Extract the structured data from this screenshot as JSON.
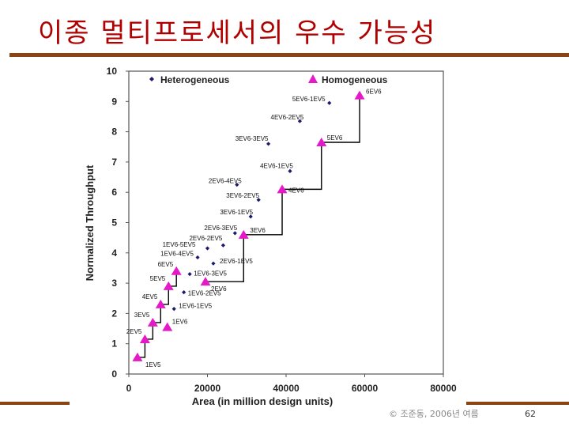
{
  "slide": {
    "title": "이종 멀티프로세서의 우수 가능성",
    "footer": "© 조준동, 2006년 여름",
    "page_number": "62"
  },
  "colors": {
    "title": "#b00000",
    "rule": "#8b4513",
    "heterogeneous": "#1a1a6e",
    "homogeneous": "#e619c8"
  },
  "chart_data": {
    "type": "scatter",
    "xlabel": "Area (in million design units)",
    "ylabel": "Normalized Throughput",
    "xlim": [
      0,
      80000
    ],
    "ylim": [
      0,
      10
    ],
    "xticks": [
      0,
      20000,
      40000,
      60000,
      80000
    ],
    "yticks": [
      0,
      1,
      2,
      3,
      4,
      5,
      6,
      7,
      8,
      9,
      10
    ],
    "grid": false,
    "legend": "top",
    "series": [
      {
        "name": "Heterogeneous",
        "marker": "diamond",
        "points": [
          {
            "label": "5EV6-1EV5",
            "x": 51000,
            "y": 8.95
          },
          {
            "label": "4EV6-2EV5",
            "x": 43500,
            "y": 8.35
          },
          {
            "label": "3EV6-3EV5",
            "x": 35500,
            "y": 7.6
          },
          {
            "label": "4EV6-1EV5",
            "x": 41000,
            "y": 6.7
          },
          {
            "label": "2EV6-4EV5",
            "x": 27500,
            "y": 6.25
          },
          {
            "label": "3EV6-2EV5",
            "x": 33000,
            "y": 5.75
          },
          {
            "label": "3EV6-1EV5",
            "x": 31000,
            "y": 5.2
          },
          {
            "label": "2EV6-3EV5",
            "x": 27000,
            "y": 4.65
          },
          {
            "label": "2EV6-2EV5",
            "x": 24000,
            "y": 4.25
          },
          {
            "label": "1EV6-5EV5",
            "x": 20000,
            "y": 4.15
          },
          {
            "label": "1EV6-4EV5",
            "x": 17500,
            "y": 3.85
          },
          {
            "label": "2EV6-1EV5",
            "x": 21500,
            "y": 3.65
          },
          {
            "label": "1EV6-3EV5",
            "x": 15500,
            "y": 3.3
          },
          {
            "label": "1EV6-2EV5",
            "x": 14000,
            "y": 2.7
          },
          {
            "label": "1EV6-1EV5",
            "x": 11500,
            "y": 2.15
          }
        ]
      },
      {
        "name": "Homogeneous",
        "marker": "triangle",
        "points": [
          {
            "label": "1EV5",
            "x": 2200,
            "y": 0.55
          },
          {
            "label": "2EV5",
            "x": 4100,
            "y": 1.15
          },
          {
            "label": "3EV5",
            "x": 6100,
            "y": 1.7
          },
          {
            "label": "4EV5",
            "x": 8100,
            "y": 2.3
          },
          {
            "label": "5EV5",
            "x": 10100,
            "y": 2.9
          },
          {
            "label": "6EV5",
            "x": 12100,
            "y": 3.4
          },
          {
            "label": "1EV6",
            "x": 9800,
            "y": 1.55
          },
          {
            "label": "2EV6",
            "x": 19500,
            "y": 3.05
          },
          {
            "label": "3EV6",
            "x": 29200,
            "y": 4.6
          },
          {
            "label": "4EV6",
            "x": 39000,
            "y": 6.1
          },
          {
            "label": "5EV6",
            "x": 49000,
            "y": 7.65
          },
          {
            "label": "6EV6",
            "x": 58700,
            "y": 9.2
          }
        ]
      }
    ],
    "steps": [
      {
        "x": [
          2200,
          4100,
          4100
        ],
        "y": [
          0.55,
          0.55,
          1.15
        ]
      },
      {
        "x": [
          4100,
          6100,
          6100
        ],
        "y": [
          1.15,
          1.15,
          1.7
        ]
      },
      {
        "x": [
          6100,
          8100,
          8100
        ],
        "y": [
          1.7,
          1.7,
          2.3
        ]
      },
      {
        "x": [
          8100,
          10100,
          10100
        ],
        "y": [
          2.3,
          2.3,
          2.9
        ]
      },
      {
        "x": [
          10100,
          12100,
          12100
        ],
        "y": [
          2.9,
          2.9,
          3.4
        ]
      },
      {
        "x": [
          19500,
          29200,
          29200
        ],
        "y": [
          3.05,
          3.05,
          4.6
        ]
      },
      {
        "x": [
          29200,
          39000,
          39000
        ],
        "y": [
          4.6,
          4.6,
          6.1
        ]
      },
      {
        "x": [
          39000,
          49000,
          49000
        ],
        "y": [
          6.1,
          6.1,
          7.65
        ]
      },
      {
        "x": [
          49000,
          58700,
          58700
        ],
        "y": [
          7.65,
          7.65,
          9.2
        ]
      }
    ]
  }
}
